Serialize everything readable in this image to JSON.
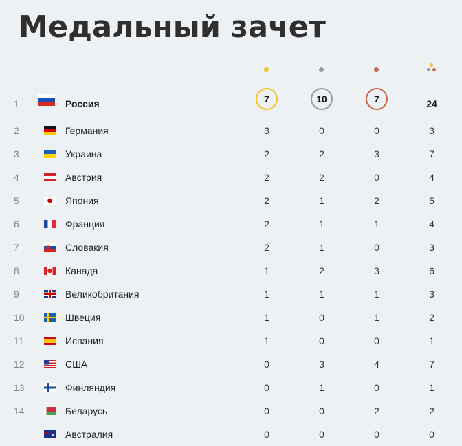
{
  "title": "Медальный зачет",
  "colors": {
    "gold": "#f2c12e",
    "silver": "#999999",
    "bronze": "#c8694a"
  },
  "columns": [
    "gold",
    "silver",
    "bronze",
    "total"
  ],
  "rows": [
    {
      "rank": "1",
      "country": "Россия",
      "flag": "ru",
      "gold": "7",
      "silver": "10",
      "bronze": "7",
      "total": "24"
    },
    {
      "rank": "2",
      "country": "Германия",
      "flag": "de",
      "gold": "3",
      "silver": "0",
      "bronze": "0",
      "total": "3"
    },
    {
      "rank": "3",
      "country": "Украина",
      "flag": "ua",
      "gold": "2",
      "silver": "2",
      "bronze": "3",
      "total": "7"
    },
    {
      "rank": "4",
      "country": "Австрия",
      "flag": "at",
      "gold": "2",
      "silver": "2",
      "bronze": "0",
      "total": "4"
    },
    {
      "rank": "5",
      "country": "Япония",
      "flag": "jp",
      "gold": "2",
      "silver": "1",
      "bronze": "2",
      "total": "5"
    },
    {
      "rank": "6",
      "country": "Франция",
      "flag": "fr",
      "gold": "2",
      "silver": "1",
      "bronze": "1",
      "total": "4"
    },
    {
      "rank": "7",
      "country": "Словакия",
      "flag": "sk",
      "gold": "2",
      "silver": "1",
      "bronze": "0",
      "total": "3"
    },
    {
      "rank": "8",
      "country": "Канада",
      "flag": "ca",
      "gold": "1",
      "silver": "2",
      "bronze": "3",
      "total": "6"
    },
    {
      "rank": "9",
      "country": "Великобритания",
      "flag": "gb",
      "gold": "1",
      "silver": "1",
      "bronze": "1",
      "total": "3"
    },
    {
      "rank": "10",
      "country": "Швеция",
      "flag": "se",
      "gold": "1",
      "silver": "0",
      "bronze": "1",
      "total": "2"
    },
    {
      "rank": "11",
      "country": "Испания",
      "flag": "es",
      "gold": "1",
      "silver": "0",
      "bronze": "0",
      "total": "1"
    },
    {
      "rank": "12",
      "country": "США",
      "flag": "us",
      "gold": "0",
      "silver": "3",
      "bronze": "4",
      "total": "7"
    },
    {
      "rank": "13",
      "country": "Финляндия",
      "flag": "fi",
      "gold": "0",
      "silver": "1",
      "bronze": "0",
      "total": "1"
    },
    {
      "rank": "14",
      "country": "Беларусь",
      "flag": "by",
      "gold": "0",
      "silver": "0",
      "bronze": "2",
      "total": "2"
    },
    {
      "rank": "",
      "country": "Австралия",
      "flag": "au",
      "gold": "0",
      "silver": "0",
      "bronze": "0",
      "total": "0"
    }
  ]
}
